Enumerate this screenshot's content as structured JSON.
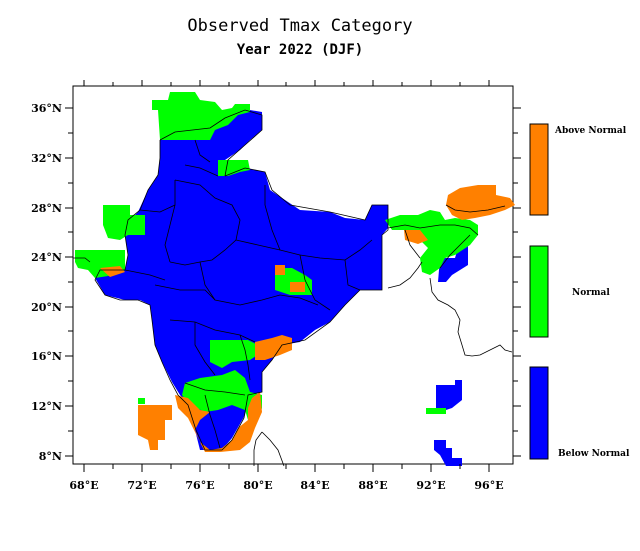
{
  "title": "Observed Tmax Category",
  "subtitle": "Year 2022 (DJF)",
  "colors": {
    "above": "#ff8000",
    "normal": "#00ff00",
    "below": "#0000ff",
    "frame": "#000000"
  },
  "axes": {
    "lon_ticks": [
      "68°E",
      "72°E",
      "76°E",
      "80°E",
      "84°E",
      "88°E",
      "92°E",
      "96°E"
    ],
    "lat_ticks": [
      "36°N",
      "32°N",
      "28°N",
      "24°N",
      "20°N",
      "16°N",
      "12°N",
      "8°N"
    ]
  },
  "legend": [
    {
      "label": "Above Normal",
      "color": "#ff8000"
    },
    {
      "label": "Normal",
      "color": "#00ff00"
    },
    {
      "label": "Below Normal",
      "color": "#0000ff"
    }
  ]
}
